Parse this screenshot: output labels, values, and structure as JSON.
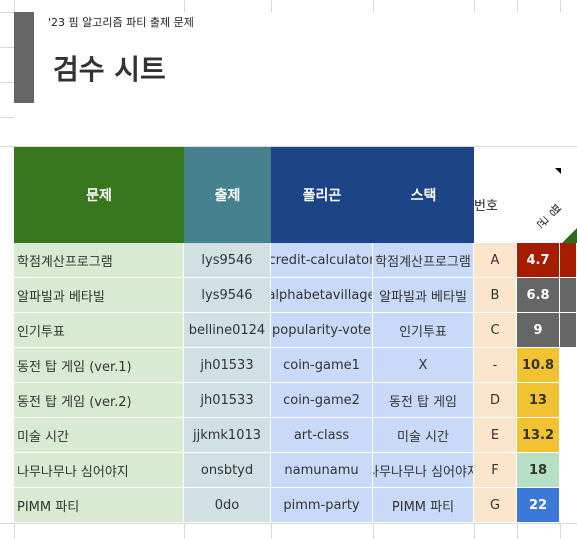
{
  "sheet": {
    "subtitle": "'23 핌 알고리즘 파티 출제 문제",
    "title": "검수 시트"
  },
  "headers": {
    "problem": "문제",
    "author": "출제",
    "polygon": "폴리곤",
    "stack": "스택",
    "number": "번호",
    "difficulty_partial": "평균"
  },
  "colors": {
    "problem_header": "#38761d",
    "author_header": "#45818e",
    "polygon_header": "#1c4587",
    "stack_header": "#1c4587"
  },
  "rows": [
    {
      "name": "학점계산프로그램",
      "author": "lys9546",
      "polygon": "credit-calculator",
      "stack": "학점계산프로그램",
      "num": "A",
      "diff": "4.7",
      "diff_bg": "#a61c00",
      "diff_fg": "#ffffff",
      "extra_bg": "#a61c00"
    },
    {
      "name": "알파빌과 베타빌",
      "author": "lys9546",
      "polygon": "alphabetavillage",
      "stack": "알파빌과 베타빌",
      "num": "B",
      "diff": "6.8",
      "diff_bg": "#666666",
      "diff_fg": "#ffffff",
      "extra_bg": "#666666"
    },
    {
      "name": "인기투표",
      "author": "belline0124",
      "polygon": "popularity-vote",
      "stack": "인기투표",
      "num": "C",
      "diff": "9",
      "diff_bg": "#666666",
      "diff_fg": "#ffffff",
      "extra_bg": "#666666"
    },
    {
      "name": "동전 탑 게임 (ver.1)",
      "author": "jh01533",
      "polygon": "coin-game1",
      "stack": "X",
      "num": "-",
      "diff": "10.8",
      "diff_bg": "#f1c232",
      "diff_fg": "#333333",
      "extra_bg": "#ffffff"
    },
    {
      "name": "동전 탑 게임 (ver.2)",
      "author": "jh01533",
      "polygon": "coin-game2",
      "stack": "동전 탑 게임",
      "num": "D",
      "diff": "13",
      "diff_bg": "#f1c232",
      "diff_fg": "#333333",
      "extra_bg": "#ffffff"
    },
    {
      "name": "미술 시간",
      "author": "jjkmk1013",
      "polygon": "art-class",
      "stack": "미술 시간",
      "num": "E",
      "diff": "13.2",
      "diff_bg": "#f1c232",
      "diff_fg": "#333333",
      "extra_bg": "#ffffff"
    },
    {
      "name": "나무나무나 심어야지",
      "author": "onsbtyd",
      "polygon": "namunamu",
      "stack": "나무나무나 심어야지",
      "num": "F",
      "diff": "18",
      "diff_bg": "#b6e1c6",
      "diff_fg": "#333333",
      "extra_bg": "#ffffff"
    },
    {
      "name": "PIMM 파티",
      "author": "0do",
      "polygon": "pimm-party",
      "stack": "PIMM 파티",
      "num": "G",
      "diff": "22",
      "diff_bg": "#3c78d8",
      "diff_fg": "#ffffff",
      "extra_bg": "#ffffff"
    }
  ]
}
